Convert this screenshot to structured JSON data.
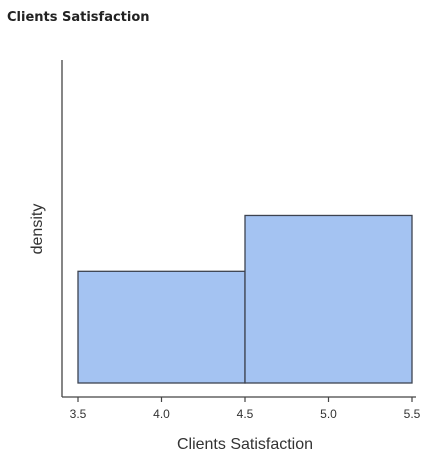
{
  "panel": {
    "title": "Clients Satisfaction"
  },
  "chart_data": {
    "type": "bar",
    "subtype": "histogram",
    "title": "",
    "xlabel": "Clients Satisfaction",
    "ylabel": "density",
    "x_ticks": [
      3.5,
      4.0,
      4.5,
      5.0,
      5.5
    ],
    "x_tick_labels": [
      "3.5",
      "4.0",
      "4.5",
      "5.0",
      "5.5"
    ],
    "xlim": [
      3.5,
      5.5
    ],
    "ylim": [
      0,
      1.3
    ],
    "y_ticks_shown": false,
    "grid": false,
    "bins": [
      {
        "x0": 3.5,
        "x1": 4.5,
        "density": 0.4
      },
      {
        "x0": 4.5,
        "x1": 5.5,
        "density": 0.6
      }
    ],
    "colors": {
      "bar_fill": "#a4c3f2",
      "bar_stroke": "#3d4350",
      "axis": "#444444"
    }
  }
}
